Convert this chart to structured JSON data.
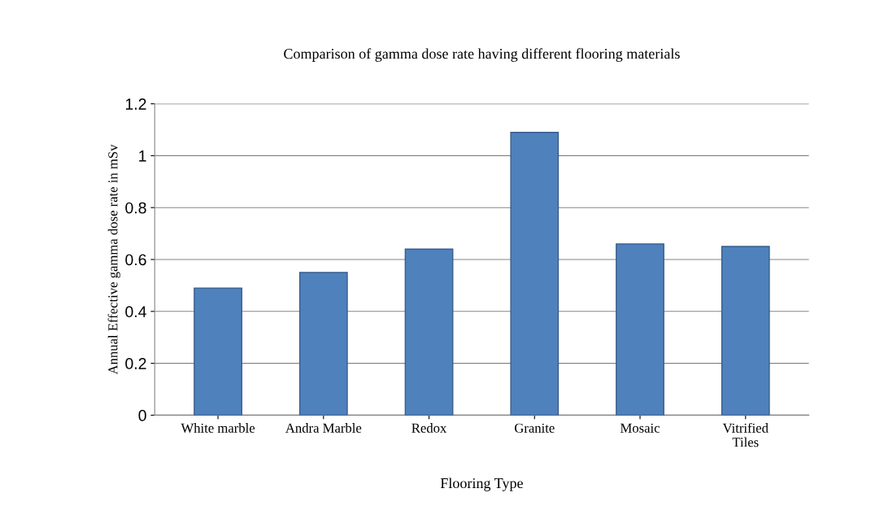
{
  "chart_data": {
    "type": "bar",
    "title": "Comparison of gamma dose rate having different flooring materials",
    "xlabel": "Flooring Type",
    "ylabel": "Annual Effective gamma dose rate in mSv",
    "categories": [
      "White marble",
      "Andra Marble",
      "Redox",
      "Granite",
      "Mosaic",
      "Vitrified\nTiles"
    ],
    "values": [
      0.49,
      0.55,
      0.64,
      1.09,
      0.66,
      0.65
    ],
    "color": "#4f81bd",
    "ylim": [
      0,
      1.2
    ],
    "yticks": [
      0,
      0.2,
      0.4,
      0.6,
      0.8,
      1,
      1.2
    ],
    "grid": "y"
  }
}
